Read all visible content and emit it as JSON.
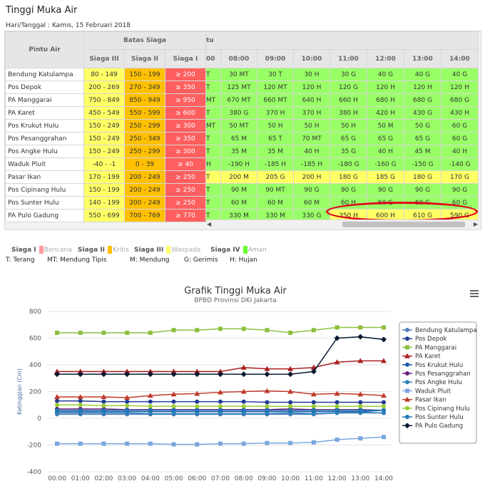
{
  "page": {
    "title": "Tinggi Muka Air",
    "date_label": "Hari/Tanggal : Kamis, 15 Februari 2018"
  },
  "table": {
    "col_pintu": "Pintu Air",
    "col_batas": "Batas Siaga",
    "col_waktu_partial": "tu",
    "siaga_headers": [
      "Siaga III",
      "Siaga II",
      "Siaga I"
    ],
    "partial_hour_header": "00",
    "hours": [
      "08:00",
      "09:00",
      "10:00",
      "11:00",
      "12:00",
      "13:00",
      "14:00"
    ],
    "rows": [
      {
        "name": "Bendung Katulampa",
        "s3": "80 - 149",
        "s2": "150 - 199",
        "s1": "≥ 200",
        "partial": "T",
        "vals": [
          "30 MT",
          "30 T",
          "30 H",
          "30 G",
          "40 G",
          "40 G",
          "40 G"
        ],
        "colors": [
          "G",
          "G",
          "G",
          "G",
          "G",
          "G",
          "G"
        ]
      },
      {
        "name": "Pos Depok",
        "s3": "200 - 269",
        "s2": "270 - 349",
        "s1": "≥ 350",
        "partial": "T",
        "vals": [
          "125 MT",
          "120 MT",
          "120 H",
          "120 G",
          "120 H",
          "120 H",
          "120 H"
        ],
        "colors": [
          "G",
          "G",
          "G",
          "G",
          "G",
          "G",
          "G"
        ]
      },
      {
        "name": "PA Manggarai",
        "s3": "750 - 849",
        "s2": "850 - 949",
        "s1": "≥ 950",
        "partial": "MT",
        "vals": [
          "670 MT",
          "660 MT",
          "640 H",
          "660 H",
          "680 H",
          "680 G",
          "680 G"
        ],
        "colors": [
          "G",
          "G",
          "G",
          "G",
          "G",
          "G",
          "G"
        ]
      },
      {
        "name": "PA Karet",
        "s3": "450 - 549",
        "s2": "550 - 599",
        "s1": "≥ 600",
        "partial": "T",
        "vals": [
          "380 G",
          "370 H",
          "370 H",
          "380 H",
          "420 H",
          "430 G",
          "430 H"
        ],
        "colors": [
          "G",
          "G",
          "G",
          "G",
          "G",
          "G",
          "G"
        ]
      },
      {
        "name": "Pos Krukut Hulu",
        "s3": "150 - 249",
        "s2": "250 - 299",
        "s1": "≥ 300",
        "partial": "MT",
        "vals": [
          "50 MT",
          "50 H",
          "50 H",
          "50 H",
          "50 M",
          "50 G",
          "60 G"
        ],
        "colors": [
          "G",
          "G",
          "G",
          "G",
          "G",
          "G",
          "G"
        ]
      },
      {
        "name": "Pos Pesanggrahan",
        "s3": "150 - 249",
        "s2": "250 - 349",
        "s1": "≥ 350",
        "partial": "T",
        "vals": [
          "65 M",
          "65 T",
          "70 MT",
          "65 G",
          "65 G",
          "65 G",
          "60 G"
        ],
        "colors": [
          "G",
          "G",
          "G",
          "G",
          "G",
          "G",
          "G"
        ]
      },
      {
        "name": "Pos Angke Hulu",
        "s3": "150 - 249",
        "s2": "250 - 299",
        "s1": "≥ 300",
        "partial": "T",
        "vals": [
          "35 M",
          "35 M",
          "40 H",
          "35 G",
          "40 H",
          "45 M",
          "40 H"
        ],
        "colors": [
          "G",
          "G",
          "G",
          "G",
          "G",
          "G",
          "G"
        ]
      },
      {
        "name": "Waduk Pluit",
        "s3": "-40 - -1",
        "s2": "0 - 39",
        "s1": "≥ 40",
        "partial": "H",
        "vals": [
          "-190 H",
          "-185 H",
          "-185 H",
          "-180 G",
          "-160 G",
          "-150 G",
          "-140 G"
        ],
        "colors": [
          "G",
          "G",
          "G",
          "G",
          "G",
          "G",
          "G"
        ]
      },
      {
        "name": "Pasar Ikan",
        "s3": "170 - 199",
        "s2": "200 - 249",
        "s1": "≥ 250",
        "partial": "T",
        "vals": [
          "200 M",
          "205 G",
          "200 H",
          "180 G",
          "185 G",
          "180 G",
          "170 G"
        ],
        "colors": [
          "Y",
          "Y",
          "Y",
          "Y",
          "Y",
          "Y",
          "Y"
        ]
      },
      {
        "name": "Pos Cipinang Hulu",
        "s3": "150 - 199",
        "s2": "200 - 249",
        "s1": "≥ 250",
        "partial": "T",
        "vals": [
          "90 M",
          "90 MT",
          "90 G",
          "90 G",
          "90 G",
          "90 G",
          "90 G"
        ],
        "colors": [
          "G",
          "G",
          "G",
          "G",
          "G",
          "G",
          "G"
        ]
      },
      {
        "name": "Pos Sunter Hulu",
        "s3": "140 - 199",
        "s2": "200 - 249",
        "s1": "≥ 250",
        "partial": "T",
        "vals": [
          "60 M",
          "60 M",
          "60 M",
          "60 H",
          "60 G",
          "60 G",
          "60 G"
        ],
        "colors": [
          "G",
          "G",
          "G",
          "G",
          "G",
          "G",
          "G"
        ]
      },
      {
        "name": "PA Pulo Gadung",
        "s3": "550 - 699",
        "s2": "700 - 769",
        "s1": "≥ 770",
        "partial": "T",
        "vals": [
          "330 M",
          "330 M",
          "330 G",
          "350 H",
          "600 H",
          "610 G",
          "590 G"
        ],
        "colors": [
          "G",
          "G",
          "G",
          "Y",
          "Y",
          "Y",
          "Y"
        ]
      }
    ]
  },
  "legend": {
    "siaga": [
      {
        "label": "Siaga I",
        "text": "Bencana",
        "color": "#ff9999"
      },
      {
        "label": "Siaga II",
        "text": "Kritis",
        "color": "#ffc000"
      },
      {
        "label": "Siaga III",
        "text": "Waspada",
        "color": "#ffff66"
      },
      {
        "label": "Siaga IV",
        "text": "Aman",
        "color": "#66ff33"
      }
    ],
    "weather": [
      "T: Terang",
      "MT: Mendung Tipis",
      "M: Mendung",
      "G: Gerimis",
      "H: Hujan"
    ]
  },
  "colors": {
    "green": "#99ff66",
    "yellow": "#ffff66",
    "orange": "#ffc000",
    "red": "#ff5f5f",
    "highlight": "#e0001a"
  },
  "chart_data": {
    "type": "line",
    "title": "Grafik Tinggi Muka Air",
    "subtitle": "BPBD Provinsi DKI Jakarta",
    "ylabel": "Ketinggian (Cm)",
    "xlabel": "",
    "ylim": [
      -400,
      800
    ],
    "yticks": [
      -400,
      -200,
      0,
      200,
      400,
      600,
      800
    ],
    "grid": true,
    "legend_position": "right",
    "menu_icon": "hamburger-icon",
    "categories": [
      "00:00",
      "01:00",
      "02:00",
      "03:00",
      "04:00",
      "05:00",
      "06:00",
      "07:00",
      "08:00",
      "09:00",
      "10:00",
      "11:00",
      "12:00",
      "13:00",
      "14:00"
    ],
    "series": [
      {
        "name": "Bendung Katulampa",
        "color": "#4a7ebb",
        "marker": "circle",
        "values": [
          30,
          30,
          30,
          30,
          30,
          30,
          30,
          30,
          30,
          30,
          30,
          30,
          40,
          40,
          40
        ]
      },
      {
        "name": "Pos Depok",
        "color": "#1f3a93",
        "marker": "circle",
        "values": [
          130,
          130,
          125,
          125,
          125,
          125,
          125,
          125,
          125,
          120,
          120,
          120,
          120,
          120,
          120
        ]
      },
      {
        "name": "PA Manggarai",
        "color": "#8cbf3f",
        "marker": "square",
        "values": [
          640,
          640,
          640,
          640,
          640,
          660,
          660,
          670,
          670,
          660,
          640,
          660,
          680,
          680,
          680
        ]
      },
      {
        "name": "PA Karet",
        "color": "#aa1e1e",
        "marker": "triangle",
        "values": [
          350,
          350,
          350,
          350,
          350,
          350,
          350,
          350,
          380,
          370,
          370,
          380,
          420,
          430,
          430
        ]
      },
      {
        "name": "Pos Krukut Hulu",
        "color": "#1e5aa8",
        "marker": "circle",
        "values": [
          50,
          50,
          50,
          50,
          50,
          50,
          50,
          50,
          50,
          50,
          50,
          50,
          50,
          50,
          60
        ]
      },
      {
        "name": "Pos Pesanggrahan",
        "color": "#6a1f7a",
        "marker": "circle",
        "values": [
          70,
          70,
          70,
          65,
          65,
          65,
          65,
          65,
          65,
          65,
          70,
          65,
          65,
          65,
          60
        ]
      },
      {
        "name": "Pos Angke Hulu",
        "color": "#2c7fb8",
        "marker": "circle",
        "values": [
          40,
          40,
          40,
          40,
          35,
          35,
          35,
          35,
          35,
          35,
          40,
          35,
          40,
          45,
          40
        ]
      },
      {
        "name": "Waduk Pluit",
        "color": "#7aa6e0",
        "marker": "square",
        "values": [
          -190,
          -190,
          -190,
          -190,
          -190,
          -195,
          -195,
          -190,
          -190,
          -185,
          -185,
          -180,
          -160,
          -150,
          -140
        ]
      },
      {
        "name": "Pasar Ikan",
        "color": "#c0392b",
        "marker": "triangle",
        "values": [
          160,
          160,
          160,
          155,
          170,
          180,
          185,
          195,
          200,
          205,
          200,
          180,
          185,
          180,
          170
        ]
      },
      {
        "name": "Pos Cipinang Hulu",
        "color": "#9acd32",
        "marker": "circle",
        "values": [
          100,
          100,
          95,
          95,
          90,
          90,
          90,
          90,
          90,
          90,
          90,
          90,
          90,
          90,
          90
        ]
      },
      {
        "name": "Pos Sunter Hulu",
        "color": "#1f77b4",
        "marker": "circle",
        "values": [
          60,
          60,
          60,
          60,
          60,
          60,
          60,
          60,
          60,
          60,
          60,
          60,
          60,
          60,
          60
        ]
      },
      {
        "name": "PA Pulo Gadung",
        "color": "#0b1a33",
        "marker": "diamond",
        "values": [
          330,
          330,
          330,
          330,
          330,
          330,
          330,
          330,
          330,
          330,
          330,
          350,
          600,
          610,
          590
        ]
      }
    ]
  }
}
